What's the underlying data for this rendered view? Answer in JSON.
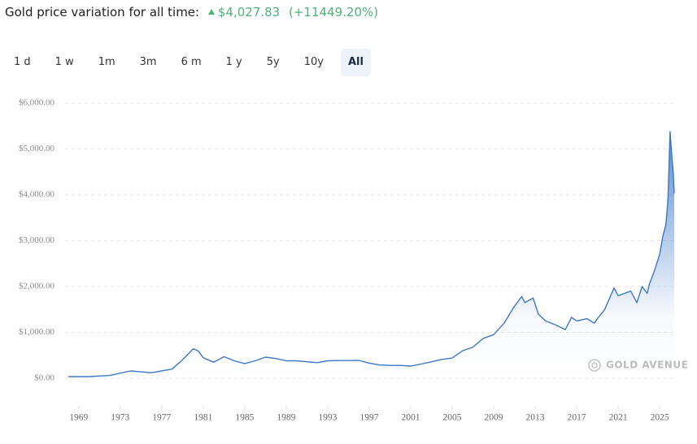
{
  "header": {
    "title": "Gold price variation for all time:",
    "price": "$4,027.83",
    "change": "(+11449.20%)"
  },
  "ranges": [
    "1 d",
    "1 w",
    "1m",
    "3m",
    "6 m",
    "1 y",
    "5y",
    "10y",
    "All"
  ],
  "active_range": 8,
  "watermark": "GOLD AVENUE",
  "chart_data": {
    "type": "line",
    "x": [
      1968,
      1970,
      1972,
      1974,
      1975,
      1976,
      1978,
      1979,
      1980.05,
      1980.5,
      1981,
      1982,
      1983,
      1984,
      1985,
      1986,
      1987,
      1988,
      1989,
      1990,
      1991,
      1992,
      1993,
      1994,
      1995,
      1996,
      1997,
      1998,
      1999,
      2000,
      2001,
      2002,
      2003,
      2004,
      2005,
      2006,
      2007,
      2008,
      2009,
      2010,
      2011,
      2011.7,
      2012,
      2012.8,
      2013.3,
      2014,
      2015,
      2015.9,
      2016.5,
      2017,
      2018,
      2018.7,
      2019,
      2019.7,
      2020.6,
      2021,
      2022.2,
      2022.8,
      2023.3,
      2023.8,
      2024,
      2024.5,
      2025,
      2025.3,
      2025.6,
      2025.8,
      2026,
      2026.15,
      2026.3,
      2026.4
    ],
    "values": [
      35,
      36,
      60,
      160,
      140,
      120,
      200,
      400,
      640,
      600,
      450,
      350,
      470,
      380,
      320,
      380,
      460,
      430,
      380,
      380,
      360,
      340,
      380,
      385,
      385,
      390,
      330,
      290,
      280,
      280,
      265,
      310,
      360,
      410,
      440,
      600,
      680,
      870,
      950,
      1200,
      1570,
      1780,
      1650,
      1750,
      1400,
      1250,
      1160,
      1060,
      1330,
      1250,
      1300,
      1200,
      1300,
      1500,
      1970,
      1800,
      1900,
      1650,
      2000,
      1850,
      2050,
      2350,
      2700,
      3100,
      3350,
      3900,
      5380,
      4900,
      4500,
      4030
    ],
    "color": "#3b78c8",
    "xlim": [
      1968,
      2026.4
    ],
    "xticks": [
      1969,
      1973,
      1977,
      1981,
      1985,
      1989,
      1993,
      1997,
      2001,
      2005,
      2009,
      2013,
      2017,
      2021,
      2025
    ],
    "ylim": [
      0,
      6000
    ],
    "yticks": [
      {
        "value": 0,
        "label": "$0.00"
      },
      {
        "value": 1000,
        "label": "$1,000.00"
      },
      {
        "value": 2000,
        "label": "$2,000.00"
      },
      {
        "value": 3000,
        "label": "$3,000.00"
      },
      {
        "value": 4000,
        "label": "$4,000.00"
      },
      {
        "value": 5000,
        "label": "$5,000.00"
      },
      {
        "value": 6000,
        "label": "$6,000.00"
      }
    ],
    "grid": true
  }
}
